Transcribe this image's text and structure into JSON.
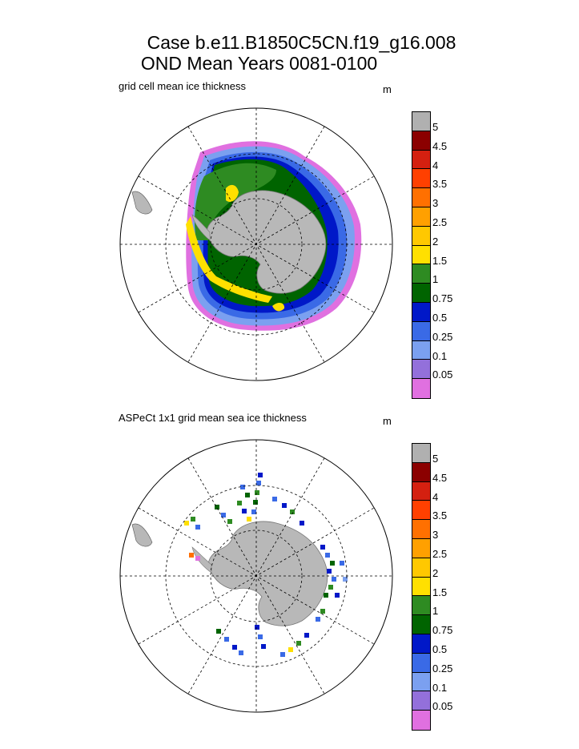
{
  "title": {
    "line1": "Case b.e11.B1850C5CN.f19_g16.008",
    "line2": "OND Mean   Years 0081-0100"
  },
  "panels": [
    {
      "label": "grid cell mean ice thickness",
      "unit": "m"
    },
    {
      "label": "ASPeCt 1x1 grid mean sea ice thickness",
      "unit": "m"
    }
  ],
  "colorbar": {
    "levels": [
      "5",
      "4.5",
      "4",
      "3.5",
      "3",
      "2.5",
      "2",
      "1.5",
      "1",
      "0.75",
      "0.5",
      "0.25",
      "0.1",
      "0.05"
    ],
    "colors": [
      "#b0b0b0",
      "#8b0000",
      "#d42010",
      "#ff4000",
      "#ff7000",
      "#ffa000",
      "#ffc800",
      "#ffe000",
      "#2e8b22",
      "#006400",
      "#0018c8",
      "#3a6ae6",
      "#7ba0f0",
      "#9370db",
      "#e070e0"
    ]
  }
}
